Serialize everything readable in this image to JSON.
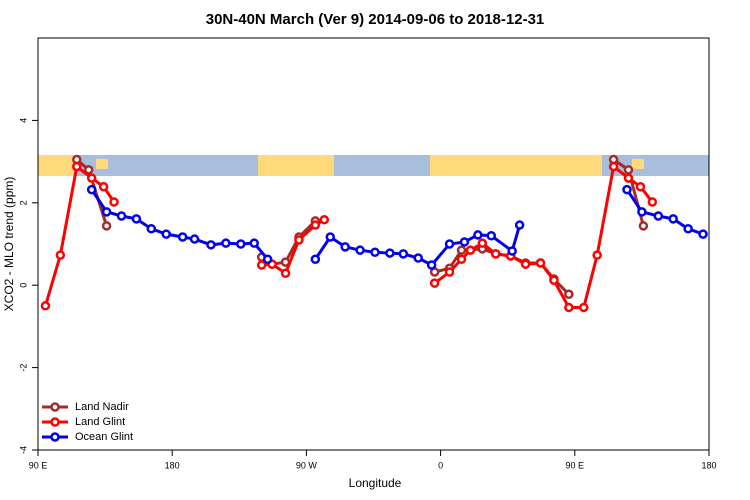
{
  "chart_data": {
    "type": "line",
    "title": "30N-40N March (Ver 9)   2014-09-06 to 2018-12-31",
    "xlabel": "Longitude",
    "ylabel": "XCO2 - MLO trend (ppm)",
    "xlim": [
      90,
      540
    ],
    "ylim": [
      -4,
      6
    ],
    "xticks": [
      {
        "value": 90,
        "label": "90 E"
      },
      {
        "value": 180,
        "label": "180"
      },
      {
        "value": 270,
        "label": "90 W"
      },
      {
        "value": 360,
        "label": "0"
      },
      {
        "value": 450,
        "label": "90 E"
      },
      {
        "value": 540,
        "label": "180"
      }
    ],
    "yticks": [
      -4,
      -2,
      0,
      2,
      4
    ],
    "legend": "bottom-left",
    "series": [
      {
        "name": "Land Nadir",
        "color": "#a52a2a",
        "x": [
          116,
          124,
          136,
          null,
          240,
          247,
          256,
          265,
          276,
          null,
          356,
          366,
          374,
          388,
          397,
          407,
          417,
          427,
          436,
          446,
          null,
          476,
          486,
          496
        ],
        "values": [
          3.05,
          2.8,
          1.44,
          null,
          0.68,
          0.51,
          0.56,
          1.17,
          1.56,
          null,
          0.32,
          0.41,
          0.85,
          0.88,
          0.76,
          0.71,
          0.54,
          0.54,
          0.15,
          -0.22,
          null,
          3.05,
          2.8,
          1.44
        ]
      },
      {
        "name": "Land Glint",
        "color": "#ff0000",
        "x": [
          95,
          105,
          116,
          126,
          134,
          141,
          null,
          240,
          247,
          256,
          265,
          276,
          282,
          null,
          356,
          366,
          374,
          380,
          388,
          397,
          407,
          417,
          427,
          436,
          446,
          456,
          465,
          476,
          486,
          494,
          502
        ],
        "values": [
          -0.5,
          0.73,
          2.88,
          2.6,
          2.39,
          2.02,
          null,
          0.49,
          0.51,
          0.29,
          1.1,
          1.46,
          1.59,
          null,
          0.05,
          0.32,
          0.63,
          0.85,
          1.02,
          0.76,
          0.71,
          0.51,
          0.54,
          0.12,
          -0.54,
          -0.54,
          0.73,
          2.88,
          2.6,
          2.39,
          2.02
        ]
      },
      {
        "name": "Ocean Glint",
        "color": "#0000ee",
        "x": [
          126,
          136,
          146,
          156,
          166,
          176,
          187,
          195,
          206,
          216,
          226,
          235,
          244,
          null,
          276,
          286,
          296,
          306,
          316,
          326,
          335,
          345,
          354,
          366,
          376,
          385,
          394,
          408,
          413,
          null,
          485,
          495,
          506,
          516,
          526,
          536
        ],
        "values": [
          2.32,
          1.78,
          1.68,
          1.61,
          1.37,
          1.24,
          1.17,
          1.12,
          0.98,
          1.02,
          1.0,
          1.02,
          0.63,
          null,
          0.63,
          1.17,
          0.93,
          0.85,
          0.8,
          0.78,
          0.76,
          0.66,
          0.49,
          1.0,
          1.05,
          1.22,
          1.2,
          0.83,
          1.46,
          null,
          2.32,
          1.78,
          1.68,
          1.61,
          1.37,
          1.24
        ]
      }
    ]
  }
}
